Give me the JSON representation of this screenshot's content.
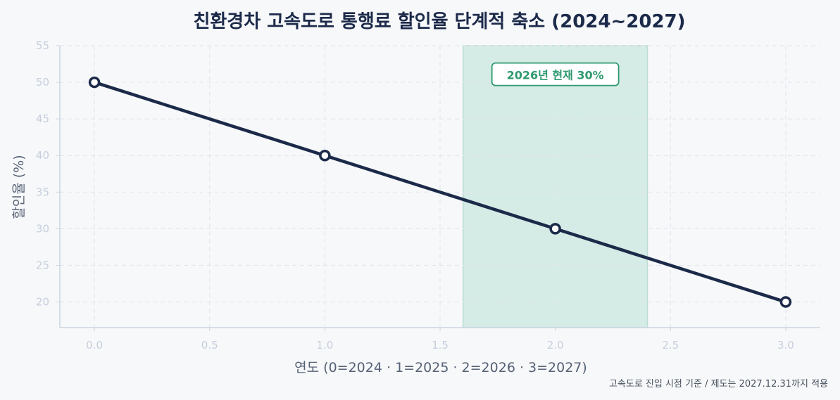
{
  "chart_data": {
    "type": "line",
    "title": "친환경차 고속도로 통행료 할인율 단계적 축소 (2024~2027)",
    "xlabel": "연도 (0=2024 · 1=2025 · 2=2026 · 3=2027)",
    "ylabel": "할인율 (%)",
    "x": [
      0,
      1,
      2,
      3
    ],
    "series": [
      {
        "values": [
          50,
          40,
          30,
          20
        ]
      }
    ],
    "xlim": [
      -0.15,
      3.15
    ],
    "ylim": [
      16.5,
      55
    ],
    "xticks": [
      0.0,
      0.5,
      1.0,
      1.5,
      2.0,
      2.5,
      3.0
    ],
    "xtick_labels": [
      "0.0",
      "0.5",
      "1.0",
      "1.5",
      "2.0",
      "2.5",
      "3.0"
    ],
    "yticks": [
      20,
      25,
      30,
      35,
      40,
      45,
      50,
      55
    ],
    "ytick_labels": [
      "20",
      "25",
      "30",
      "35",
      "40",
      "45",
      "50",
      "55"
    ],
    "grid": true,
    "highlight_band": {
      "x_start": 1.6,
      "x_end": 2.4
    },
    "annotation": {
      "text": "2026년 현재 30%",
      "x": 2.0,
      "y": 51
    },
    "footnote": "고속도로 진입 시점 기준 / 제도는 2027.12.31까지 적용",
    "colors": {
      "line": "#1c2a4a",
      "band": "#d5ebe6",
      "annotation": "#2f9a6f",
      "grid": "#e3e7ee",
      "axis": "#ccd5e0",
      "background": "#f7f8fa"
    }
  }
}
